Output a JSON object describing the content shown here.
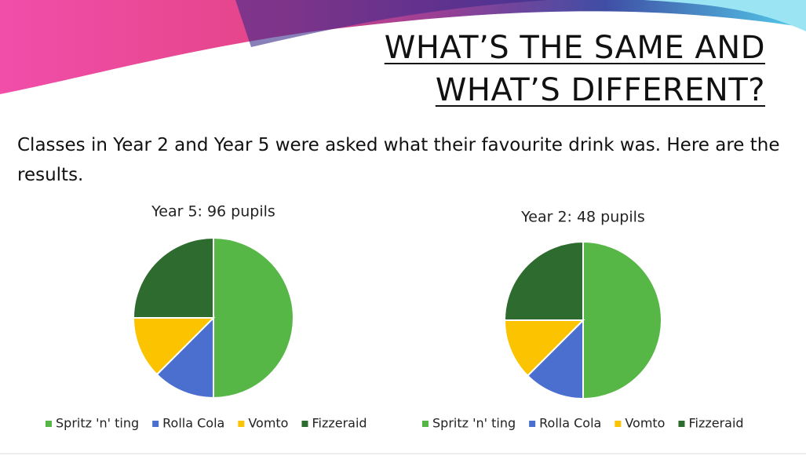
{
  "slide": {
    "title_lines": [
      "WHAT’S THE SAME AND",
      "WHAT’S DIFFERENT?"
    ],
    "text": "Classes in Year 2 and Year 5 were asked what their favourite drink was. Here are the results."
  },
  "chart_data": [
    {
      "type": "pie",
      "title": "Year 5: 96 pupils",
      "categories": [
        "Spritz 'n' ting",
        "Rolla Cola",
        "Vomto",
        "Fizzeraid"
      ],
      "values": [
        50,
        12.5,
        12.5,
        25
      ],
      "colors": [
        "#56b646",
        "#4a6fcf",
        "#fbc300",
        "#2e6b2e"
      ],
      "legend": "bottom"
    },
    {
      "type": "pie",
      "title": "Year 2: 48 pupils",
      "categories": [
        "Spritz 'n' ting",
        "Rolla Cola",
        "Vomto",
        "Fizzeraid"
      ],
      "values": [
        50,
        12.5,
        12.5,
        25
      ],
      "colors": [
        "#56b646",
        "#4a6fcf",
        "#fbc300",
        "#2e6b2e"
      ],
      "legend": "bottom"
    }
  ]
}
